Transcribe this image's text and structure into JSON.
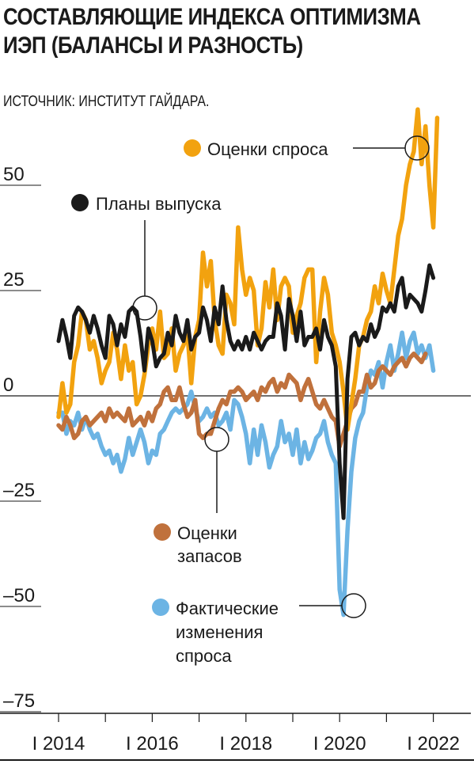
{
  "title_lines": [
    "СОСТАВЛЯЮЩИЕ ИНДЕКСА ОПТИМИЗМА",
    "ИЭП (БАЛАНСЫ И РАЗНОСТЬ)"
  ],
  "source": "ИСТОЧНИК: ИНСТИТУТ ГАЙДАРА.",
  "chart_data": {
    "type": "line",
    "title": "СОСТАВЛЯЮЩИЕ ИНДЕКСА ОПТИМИЗМА ИЭП (БАЛАНСЫ И РАЗНОСТЬ)",
    "ylim": [
      -75,
      60
    ],
    "yticks": [
      50,
      25,
      0,
      -25,
      -50,
      -75
    ],
    "ytick_labels": [
      "50",
      "25",
      "0",
      "–25",
      "–50",
      "–75"
    ],
    "xlim": [
      2014,
      2022.75
    ],
    "xticks": [
      2014,
      2016,
      2018,
      2020,
      2022
    ],
    "xtick_labels": [
      "I 2014",
      "I 2016",
      "I 2018",
      "I 2020",
      "I 2022"
    ],
    "grid": false,
    "series": [
      {
        "name": "Оценки спроса",
        "color": "#f2a20f",
        "values": [
          -5,
          3,
          -4,
          -2,
          8,
          12,
          20,
          18,
          11,
          13,
          9,
          3,
          6,
          8,
          15,
          11,
          4,
          12,
          6,
          8,
          -2,
          0,
          5,
          12,
          16,
          11,
          20,
          9,
          10,
          16,
          6,
          10,
          12,
          15,
          3,
          14,
          18,
          34,
          26,
          32,
          18,
          12,
          10,
          24,
          22,
          17,
          40,
          30,
          24,
          28,
          25,
          12,
          16,
          27,
          21,
          30,
          18,
          26,
          28,
          26,
          15,
          19,
          22,
          28,
          30,
          30,
          8,
          20,
          28,
          24,
          15,
          12,
          8,
          1,
          -8,
          -2,
          4,
          12,
          14,
          18,
          20,
          26,
          22,
          29,
          25,
          22,
          30,
          38,
          42,
          50,
          55,
          58,
          68,
          55,
          64,
          50,
          40,
          66
        ],
        "start": 2014.0,
        "step": 0.0833333
      },
      {
        "name": "Планы выпуска",
        "color": "#1a1a1a",
        "values": [
          13,
          18,
          14,
          9,
          19,
          21,
          20,
          18,
          15,
          19,
          16,
          12,
          9,
          19,
          17,
          12,
          17,
          14,
          20,
          21,
          20,
          14,
          6,
          16,
          13,
          7,
          9,
          10,
          15,
          12,
          19,
          15,
          13,
          18,
          11,
          14,
          15,
          21,
          18,
          13,
          21,
          17,
          26,
          18,
          13,
          11,
          13,
          11,
          14,
          11,
          15,
          13,
          11,
          13,
          14,
          14,
          22,
          19,
          11,
          23,
          19,
          13,
          20,
          12,
          14,
          14,
          16,
          11,
          18,
          14,
          12,
          7,
          -16,
          -29,
          4,
          14,
          15,
          12,
          14,
          13,
          17,
          14,
          16,
          21,
          20,
          22,
          20,
          26,
          28,
          21,
          24,
          23,
          22,
          20,
          25,
          31,
          28
        ],
        "start": 2014.0,
        "step": 0.0833333
      },
      {
        "name": "Оценки запасов",
        "color": "#c0713c",
        "values": [
          -7,
          -8,
          -5,
          -7,
          -10,
          -9,
          -6,
          -5,
          -7,
          -6,
          -5,
          -4,
          -6,
          -3,
          -5,
          -4,
          -5,
          -6,
          -3,
          -7,
          -6,
          -5,
          -7,
          -4,
          -6,
          -3,
          -2,
          1,
          2,
          -1,
          -1,
          2,
          -2,
          -5,
          -4,
          -1,
          -9,
          -10,
          -9,
          -9,
          -6,
          -3,
          -1,
          -2,
          1,
          1,
          2,
          1,
          -1,
          0,
          1,
          -1,
          2,
          1,
          3,
          4,
          1,
          3,
          2,
          5,
          4,
          3,
          -1,
          2,
          4,
          1,
          -2,
          -3,
          -1,
          -3,
          -5,
          -6,
          -12,
          -9,
          -6,
          -3,
          -2,
          1,
          1,
          5,
          2,
          3,
          6,
          7,
          6,
          5,
          7,
          8,
          9,
          7,
          9,
          10,
          9,
          8,
          10
        ],
        "start": 2014.0,
        "step": 0.0833333
      },
      {
        "name": "Фактические изменения спроса",
        "color": "#6cb4e4",
        "values": [
          -4,
          -4,
          -9,
          -6,
          -7,
          -4,
          -8,
          -5,
          -8,
          -10,
          -9,
          -12,
          -14,
          -13,
          -16,
          -14,
          -18,
          -15,
          -10,
          -14,
          -11,
          -8,
          -11,
          -16,
          -13,
          -14,
          -9,
          -8,
          -6,
          -4,
          -3,
          -4,
          -3,
          -2,
          1,
          -3,
          -6,
          -5,
          -3,
          -5,
          -4,
          -7,
          -6,
          -4,
          -8,
          -1,
          -2,
          -5,
          -9,
          -16,
          -8,
          -14,
          -7,
          -11,
          -17,
          -14,
          -12,
          -6,
          -11,
          -9,
          -14,
          -8,
          -16,
          -11,
          -15,
          -13,
          -10,
          -9,
          -6,
          -11,
          -14,
          -16,
          -46,
          -52,
          -32,
          -18,
          -10,
          -6,
          -4,
          2,
          6,
          5,
          8,
          2,
          8,
          12,
          6,
          10,
          15,
          9,
          13,
          15,
          10,
          12,
          9,
          12,
          6
        ],
        "start": 2014.0,
        "step": 0.0833333
      }
    ],
    "legend": [
      {
        "label": "Оценки спроса",
        "color": "#f2a20f"
      },
      {
        "label": "Планы выпуска",
        "color": "#1a1a1a"
      },
      {
        "label": "Оценки запасов",
        "color": "#c0713c"
      },
      {
        "label": "Фактические изменения спроса",
        "color": "#6cb4e4"
      }
    ]
  },
  "legend_text": {
    "demand_est": "Оценки спроса",
    "output_plans": "Планы выпуска",
    "inventory_est_1": "Оценки",
    "inventory_est_2": "запасов",
    "actual_demand_1": "Фактические",
    "actual_demand_2": "изменения",
    "actual_demand_3": "спроса"
  }
}
